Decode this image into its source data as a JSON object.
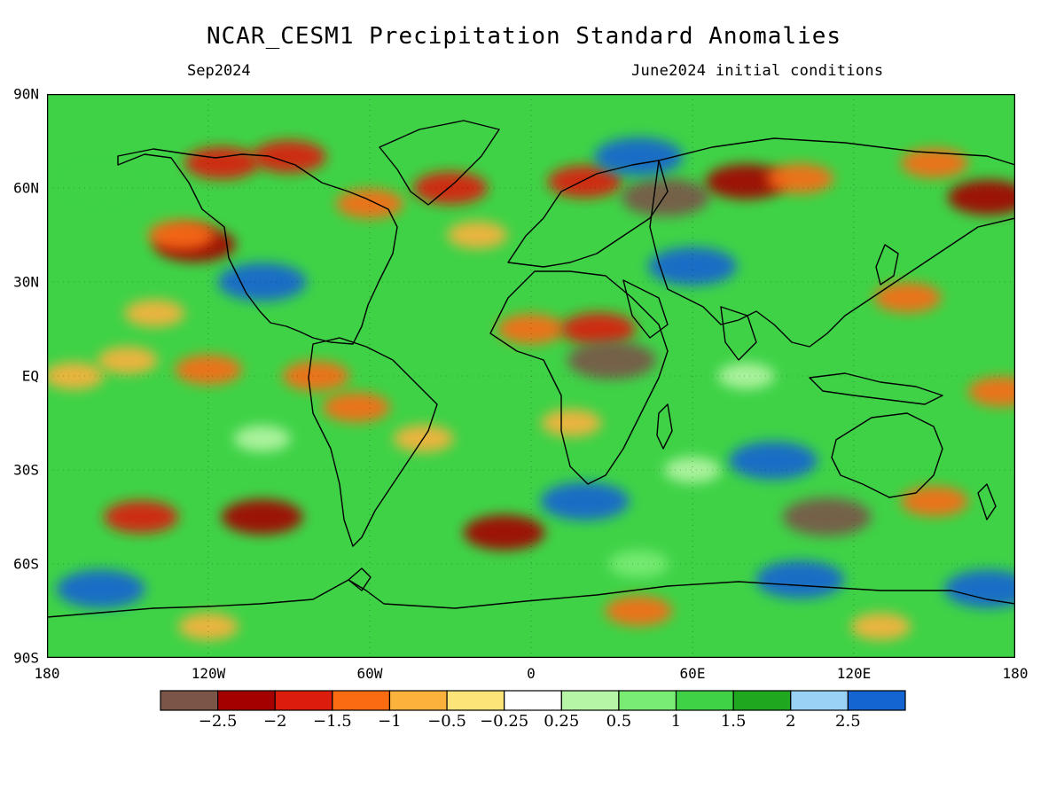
{
  "title": "NCAR_CESM1 Precipitation Standard Anomalies",
  "valid_month": "Sep2024",
  "init_conditions": "June2024 initial conditions",
  "lat_labels": [
    {
      "value": 90,
      "text": "90N"
    },
    {
      "value": 60,
      "text": "60N"
    },
    {
      "value": 30,
      "text": "30N"
    },
    {
      "value": 0,
      "text": "EQ"
    },
    {
      "value": -30,
      "text": "30S"
    },
    {
      "value": -60,
      "text": "60S"
    },
    {
      "value": -90,
      "text": "90S"
    }
  ],
  "lon_labels": [
    {
      "value": -180,
      "text": "180"
    },
    {
      "value": -120,
      "text": "120W"
    },
    {
      "value": -60,
      "text": "60W"
    },
    {
      "value": 0,
      "text": "0"
    },
    {
      "value": 60,
      "text": "60E"
    },
    {
      "value": 120,
      "text": "120E"
    },
    {
      "value": 180,
      "text": "180"
    }
  ],
  "colorbar": {
    "colors": [
      "#7a5548",
      "#a50000",
      "#dc1d0d",
      "#fb6b12",
      "#fbb13c",
      "#fde478",
      "#ffffff",
      "#b5f5a5",
      "#79ec74",
      "#3fd247",
      "#1fa71f",
      "#98d3f6",
      "#1464d2"
    ],
    "labels": [
      "-2.5",
      "-2",
      "-1.5",
      "-1",
      "-0.5",
      "-0.25",
      "0.25",
      "0.5",
      "1",
      "1.5",
      "2",
      "2.5"
    ]
  },
  "map": {
    "region": "global",
    "lon_range": [
      -180,
      180
    ],
    "lat_range": [
      -90,
      90
    ],
    "variable": "precipitation standardized anomaly",
    "background_color": "#3fd247",
    "anomaly_features": [
      {
        "lon": -140,
        "lat": 20,
        "category": "-0.5"
      },
      {
        "lon": -150,
        "lat": 5,
        "category": "-0.5"
      },
      {
        "lon": -125,
        "lat": 42,
        "category": "-2"
      },
      {
        "lon": -130,
        "lat": 45,
        "category": "-1"
      },
      {
        "lon": -115,
        "lat": 68,
        "category": "-1.5"
      },
      {
        "lon": -160,
        "lat": 62,
        "category": "1"
      },
      {
        "lon": -90,
        "lat": 70,
        "category": "-1.5"
      },
      {
        "lon": -100,
        "lat": 30,
        "category": "2.5"
      },
      {
        "lon": -60,
        "lat": 55,
        "category": "-1"
      },
      {
        "lon": -30,
        "lat": 60,
        "category": "-1.5"
      },
      {
        "lon": -20,
        "lat": 45,
        "category": "-0.5"
      },
      {
        "lon": 20,
        "lat": 62,
        "category": "-1.5"
      },
      {
        "lon": 50,
        "lat": 57,
        "category": "-2.5"
      },
      {
        "lon": 80,
        "lat": 62,
        "category": "-2"
      },
      {
        "lon": 100,
        "lat": 63,
        "category": "-1"
      },
      {
        "lon": 150,
        "lat": 68,
        "category": "-1"
      },
      {
        "lon": 170,
        "lat": 57,
        "category": "-2"
      },
      {
        "lon": 140,
        "lat": 25,
        "category": "-1"
      },
      {
        "lon": 0,
        "lat": 15,
        "category": "-1"
      },
      {
        "lon": 25,
        "lat": 15,
        "category": "-1.5"
      },
      {
        "lon": 30,
        "lat": 5,
        "category": "-2.5"
      },
      {
        "lon": 15,
        "lat": -15,
        "category": "-0.5"
      },
      {
        "lon": -65,
        "lat": -10,
        "category": "-1"
      },
      {
        "lon": -40,
        "lat": -20,
        "category": "-0.5"
      },
      {
        "lon": -80,
        "lat": 0,
        "category": "-1"
      },
      {
        "lon": -170,
        "lat": 0,
        "category": "-0.5"
      },
      {
        "lon": -120,
        "lat": 2,
        "category": "-1"
      },
      {
        "lon": -145,
        "lat": -45,
        "category": "-1.5"
      },
      {
        "lon": -100,
        "lat": -45,
        "category": "-2"
      },
      {
        "lon": -10,
        "lat": -50,
        "category": "-2"
      },
      {
        "lon": 110,
        "lat": -45,
        "category": "-2.5"
      },
      {
        "lon": 150,
        "lat": -40,
        "category": "-1"
      },
      {
        "lon": 175,
        "lat": -5,
        "category": "-1"
      },
      {
        "lon": 80,
        "lat": 0,
        "category": "0.25"
      },
      {
        "lon": 60,
        "lat": -30,
        "category": "0.25"
      },
      {
        "lon": -100,
        "lat": -20,
        "category": "0.25"
      },
      {
        "lon": 40,
        "lat": -60,
        "category": "0.5"
      },
      {
        "lon": -160,
        "lat": -68,
        "category": "2.5"
      },
      {
        "lon": 100,
        "lat": -65,
        "category": "2.5"
      },
      {
        "lon": 170,
        "lat": -68,
        "category": "2.5"
      },
      {
        "lon": 40,
        "lat": -75,
        "category": "-1"
      },
      {
        "lon": -120,
        "lat": -80,
        "category": "-0.5"
      },
      {
        "lon": 130,
        "lat": -80,
        "category": "-0.5"
      },
      {
        "lon": 20,
        "lat": -40,
        "category": "2.5"
      },
      {
        "lon": 90,
        "lat": -27,
        "category": "2.5"
      },
      {
        "lon": 60,
        "lat": 35,
        "category": "2.5"
      },
      {
        "lon": 40,
        "lat": 70,
        "category": "2.5"
      }
    ]
  }
}
